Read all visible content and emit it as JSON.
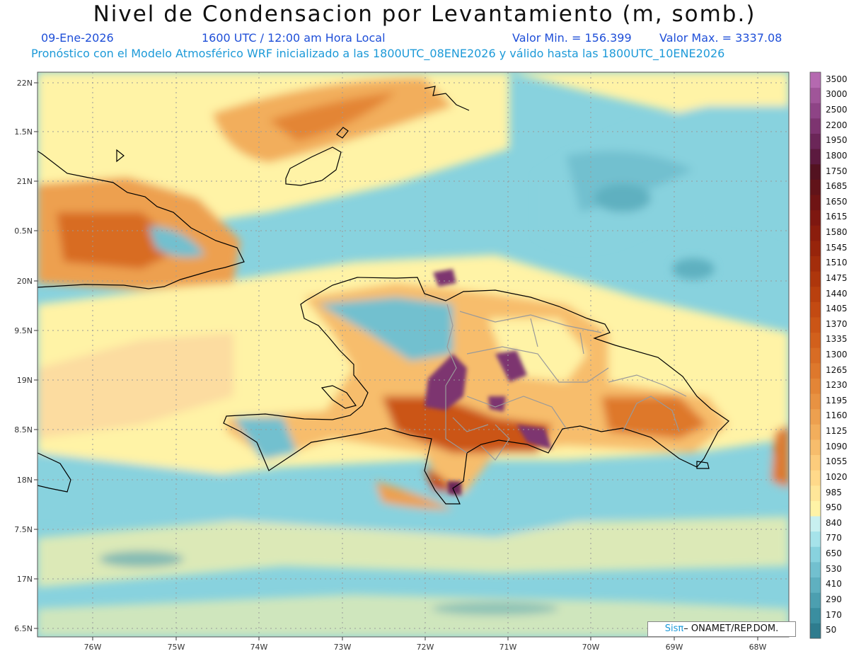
{
  "header": {
    "title": "Nivel de Condensacion por Levantamiento (m, somb.)",
    "date": "09-Ene-2026",
    "time": "1600 UTC / 12:00 am Hora Local",
    "valmin": "Valor Min. = 156.399",
    "valmax": "Valor Max. = 3337.08",
    "forecast": "Pronóstico con el Modelo Atmosférico WRF inicializado a las 1800UTC_08ENE2026 y válido hasta las  1800UTC_10ENE2026"
  },
  "axes": {
    "lat_labels": [
      "22N",
      "1.5N",
      "21N",
      "0.5N",
      "20N",
      "9.5N",
      "19N",
      "8.5N",
      "18N",
      "7.5N",
      "17N",
      "6.5N"
    ],
    "lon_labels": [
      "76W",
      "75W",
      "74W",
      "73W",
      "72W",
      "71W",
      "70W",
      "69W",
      "68W"
    ]
  },
  "colorbar": {
    "levels": [
      "50",
      "170",
      "290",
      "410",
      "530",
      "650",
      "770",
      "840",
      "950",
      "985",
      "1020",
      "1055",
      "1090",
      "1125",
      "1160",
      "1195",
      "1230",
      "1265",
      "1300",
      "1335",
      "1370",
      "1405",
      "1440",
      "1475",
      "1510",
      "1545",
      "1580",
      "1615",
      "1650",
      "1685",
      "1750",
      "1800",
      "1950",
      "2200",
      "2500",
      "3000",
      "3500"
    ],
    "colors": [
      "#2e7c8e",
      "#3a8ea0",
      "#4c9fb0",
      "#5fb0c0",
      "#72c0cf",
      "#88d2de",
      "#a6e3ea",
      "#c8f0f0",
      "#fff3a6",
      "#ffe699",
      "#ffd98a",
      "#fccc7c",
      "#f7bd6c",
      "#f2ae5c",
      "#eda04f",
      "#e89242",
      "#e38536",
      "#de782c",
      "#d86c24",
      "#d2601c",
      "#cb5516",
      "#c34a12",
      "#b9400e",
      "#ae360c",
      "#a32d0b",
      "#97240b",
      "#8b1d0d",
      "#7e1710",
      "#6f1414",
      "#611319",
      "#531220",
      "#5c1a3f",
      "#6b2658",
      "#7d3470",
      "#8e4486",
      "#a05599",
      "#b569b0"
    ]
  },
  "credit": {
    "sis": "Sis",
    "pi": "π",
    "text": "– ONAMET/REP.DOM."
  }
}
